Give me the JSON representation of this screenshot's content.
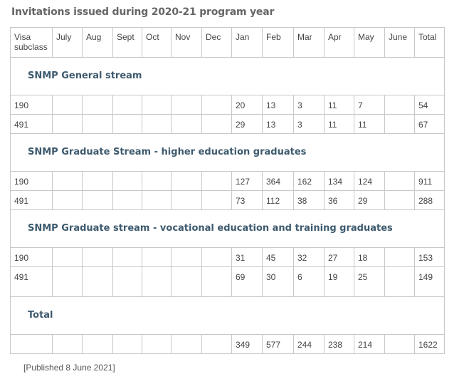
{
  "title": "Invitations issued during 2020-21 program year",
  "headers": [
    "Visa subclass",
    "July",
    "Aug",
    "Sept",
    "Oct",
    "Nov",
    "Dec",
    "Jan",
    "Feb",
    "Mar",
    "Apr",
    "May",
    "June",
    "Total"
  ],
  "sections": [
    {
      "name": "SNMP General stream",
      "rows": [
        [
          "190",
          "",
          "",
          "",
          "",
          "",
          "",
          "20",
          "13",
          "3",
          "11",
          "7",
          "",
          "54"
        ],
        [
          "491",
          "",
          "",
          "",
          "",
          "",
          "",
          "29",
          "13",
          "3",
          "11",
          "11",
          "",
          "67"
        ]
      ]
    },
    {
      "name": "SNMP Graduate Stream - higher education graduates",
      "rows": [
        [
          "190",
          "",
          "",
          "",
          "",
          "",
          "",
          "127",
          "364",
          "162",
          "134",
          "124",
          "",
          "911"
        ],
        [
          "491",
          "",
          "",
          "",
          "",
          "",
          "",
          "73",
          "112",
          "38",
          "36",
          "29",
          "",
          "288"
        ]
      ]
    },
    {
      "name": "SNMP Graduate stream - vocational education and training graduates",
      "rows": [
        [
          "190",
          "",
          "",
          "",
          "",
          "",
          "",
          "31",
          "45",
          "32",
          "27",
          "18",
          "",
          "153"
        ],
        [
          "491",
          "",
          "",
          "",
          "",
          "",
          "",
          "69",
          "30",
          "6",
          "19",
          "25",
          "",
          "149"
        ]
      ]
    },
    {
      "name": "Total",
      "rows": [
        [
          "",
          "",
          "",
          "",
          "",
          "",
          "",
          "349",
          "577",
          "244",
          "238",
          "214",
          "",
          "1622"
        ]
      ]
    }
  ],
  "published": "[Published 8 June 2021]"
}
